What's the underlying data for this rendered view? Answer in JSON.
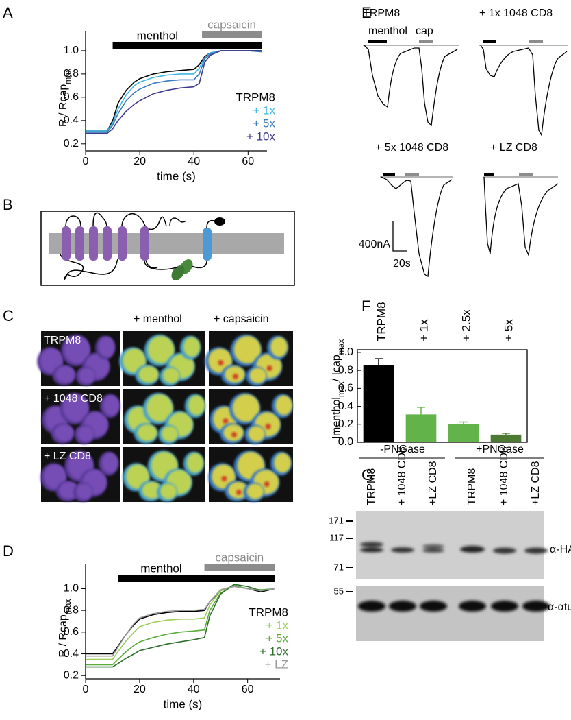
{
  "panels": [
    "A",
    "B",
    "C",
    "D",
    "E",
    "F",
    "G"
  ],
  "chart_data": [
    {
      "type": "line",
      "xlabel": "time (s)",
      "ylabel": [
        {
          "text": "R / Rcap"
        },
        {
          "text": "max",
          "sub": true
        }
      ],
      "xlim": [
        0,
        67
      ],
      "ylim": [
        0.14,
        1.17
      ],
      "xticks": [
        0,
        20,
        40,
        60
      ],
      "yticks": [
        0.2,
        0.4,
        0.6,
        0.8,
        {
          "value": 1,
          "label": "1.0"
        }
      ],
      "legend": "lower right",
      "stimuli": [
        {
          "label": "menthol",
          "start": 10,
          "end": 65,
          "color": "#000000"
        },
        {
          "label": "capsaicin",
          "start": 43,
          "end": 65,
          "color": "#8c8c8c"
        }
      ],
      "x": [
        0,
        8,
        10,
        12,
        15,
        18,
        20,
        25,
        30,
        35,
        40,
        42,
        44,
        46,
        50,
        55,
        60,
        65
      ],
      "series": [
        {
          "name": "TRPM8",
          "color": "#000000",
          "values": [
            0.31,
            0.31,
            0.4,
            0.55,
            0.66,
            0.73,
            0.76,
            0.8,
            0.82,
            0.83,
            0.84,
            0.88,
            0.95,
            0.98,
            1.0,
            1.0,
            1.0,
            1.0
          ]
        },
        {
          "name": "+ 1x",
          "color": "#3fb6e6",
          "values": [
            0.31,
            0.31,
            0.38,
            0.5,
            0.62,
            0.7,
            0.73,
            0.77,
            0.79,
            0.8,
            0.8,
            0.85,
            0.94,
            0.98,
            1.0,
            1.0,
            1.0,
            0.99
          ]
        },
        {
          "name": "+ 5x",
          "color": "#3b7bbf",
          "values": [
            0.3,
            0.3,
            0.36,
            0.46,
            0.57,
            0.64,
            0.67,
            0.72,
            0.74,
            0.75,
            0.75,
            0.8,
            0.93,
            0.97,
            1.0,
            1.0,
            1.0,
            0.99
          ]
        },
        {
          "name": "+ 10x",
          "color": "#3e3a8f",
          "values": [
            0.29,
            0.29,
            0.33,
            0.4,
            0.48,
            0.54,
            0.57,
            0.63,
            0.66,
            0.68,
            0.69,
            0.72,
            0.9,
            0.96,
            1.0,
            1.0,
            1.0,
            1.0
          ]
        }
      ]
    },
    {
      "type": "line",
      "xlabel": "time (s)",
      "ylabel": [
        {
          "text": "R / Rcap"
        },
        {
          "text": "max",
          "sub": true
        }
      ],
      "xlim": [
        0,
        72
      ],
      "ylim": [
        0.17,
        1.23
      ],
      "xticks": [
        0,
        20,
        40,
        60
      ],
      "yticks": [
        0.2,
        0.4,
        0.6,
        0.8,
        {
          "value": 1,
          "label": "1.0"
        }
      ],
      "legend": "lower right",
      "stimuli": [
        {
          "label": "menthol",
          "start": 12,
          "end": 70,
          "color": "#000000"
        },
        {
          "label": "capsaicin",
          "start": 44,
          "end": 70,
          "color": "#8c8c8c"
        }
      ],
      "x": [
        0,
        10,
        12,
        15,
        18,
        20,
        25,
        30,
        35,
        40,
        44,
        46,
        50,
        55,
        60,
        65,
        70
      ],
      "series": [
        {
          "name": "TRPM8",
          "color": "#000000",
          "values": [
            0.4,
            0.4,
            0.47,
            0.58,
            0.67,
            0.72,
            0.76,
            0.78,
            0.79,
            0.79,
            0.8,
            0.88,
            0.98,
            1.03,
            1.0,
            0.97,
            1.0
          ]
        },
        {
          "name": "+ 1x",
          "color": "#9ccc5a",
          "values": [
            0.35,
            0.35,
            0.42,
            0.52,
            0.6,
            0.65,
            0.69,
            0.71,
            0.72,
            0.72,
            0.73,
            0.85,
            0.98,
            1.03,
            1.0,
            0.98,
            1.0
          ]
        },
        {
          "name": "+ 5x",
          "color": "#5aaa3c",
          "values": [
            0.3,
            0.3,
            0.35,
            0.42,
            0.48,
            0.51,
            0.55,
            0.58,
            0.6,
            0.61,
            0.62,
            0.8,
            0.96,
            1.03,
            1.0,
            0.99,
            1.0
          ]
        },
        {
          "name": "+ 10x",
          "color": "#2e6e2c",
          "values": [
            0.28,
            0.28,
            0.31,
            0.36,
            0.4,
            0.43,
            0.46,
            0.49,
            0.51,
            0.53,
            0.55,
            0.75,
            0.95,
            1.04,
            1.02,
            0.98,
            1.0
          ]
        },
        {
          "name": "+ LZ",
          "color": "#9a9a9a",
          "values": [
            0.38,
            0.38,
            0.46,
            0.58,
            0.68,
            0.73,
            0.77,
            0.79,
            0.8,
            0.8,
            0.81,
            0.88,
            0.99,
            1.02,
            1.0,
            0.98,
            1.0
          ]
        }
      ]
    },
    {
      "type": "bar",
      "ylabel": [
        {
          "text": "Imenthol"
        },
        {
          "text": "max",
          "sub": true
        },
        {
          "text": "/ Icap"
        },
        {
          "text": "max",
          "sub": true
        }
      ],
      "categories": [
        "TRPM8",
        "+ 1x",
        "+ 2.5x",
        "+ 5x"
      ],
      "values": [
        0.86,
        0.31,
        0.2,
        0.085
      ],
      "errors": [
        0.07,
        0.08,
        0.025,
        0.015
      ],
      "colors": [
        "#000000",
        "#62b44a",
        "#62b44a",
        "#4c7a32"
      ],
      "ylim": [
        0,
        1.03
      ],
      "yticks": [
        {
          "value": 0,
          "label": "0.0"
        },
        0.2,
        0.4,
        0.6,
        0.8,
        {
          "value": 1,
          "label": "1.0"
        }
      ]
    }
  ],
  "panel_C": {
    "columns": [
      "+ menthol",
      "+ capsaicin"
    ],
    "rows": [
      "TRPM8",
      "+ 1048 CD8",
      "+ LZ CD8"
    ]
  },
  "panel_E": {
    "traces": [
      "TRPM8",
      "+ 1x 1048 CD8",
      "+ 5x 1048 CD8",
      "+ LZ CD8"
    ],
    "stimuli": [
      "menthol",
      "cap"
    ],
    "scale_current": "400nA",
    "scale_time": "20s"
  },
  "panel_G": {
    "groups": [
      "-PNGase",
      "+PNGase"
    ],
    "lanes": [
      "TRPM8",
      "+ 1048 CD8",
      "+LZ CD8",
      "TRPM8",
      "+ 1048 CD8",
      "+LZ CD8"
    ],
    "markers": [
      "171",
      "117",
      "71",
      "55"
    ],
    "antibodies": [
      "α-HA",
      "α-αtub"
    ]
  }
}
